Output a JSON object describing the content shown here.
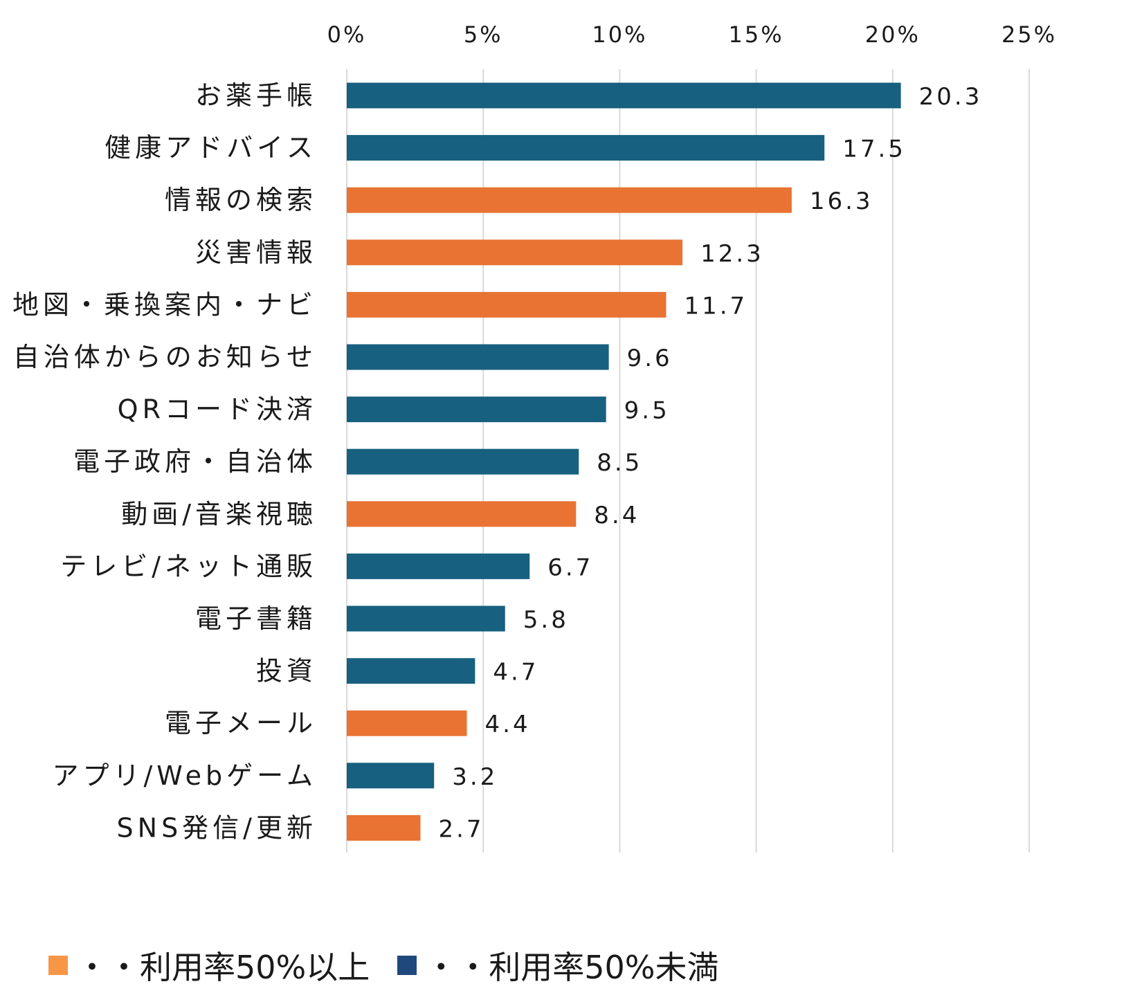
{
  "chart_data": {
    "type": "bar",
    "orientation": "horizontal",
    "x_axis_position": "top",
    "xlim": [
      0,
      25
    ],
    "x_ticks": [
      "0%",
      "5%",
      "10%",
      "15%",
      "20%",
      "25%"
    ],
    "grid": "vertical",
    "categories": [
      "お薬手帳",
      "健康アドバイス",
      "情報の検索",
      "災害情報",
      "地図・乗換案内・ナビ",
      "自治体からのお知らせ",
      "QRコード決済",
      "電子政府・自治体",
      "動画/音楽視聴",
      "テレビ/ネット通販",
      "電子書籍",
      "投資",
      "電子メール",
      "アプリ/Webゲーム",
      "SNS発信/更新"
    ],
    "values": [
      20.3,
      17.5,
      16.3,
      12.3,
      11.7,
      9.6,
      9.5,
      8.5,
      8.4,
      6.7,
      5.8,
      4.7,
      4.4,
      3.2,
      2.7
    ],
    "value_labels": [
      "20.3",
      "17.5",
      "16.3",
      "12.3",
      "11.7",
      "9.6",
      "9.5",
      "8.5",
      "8.4",
      "6.7",
      "5.8",
      "4.7",
      "4.4",
      "3.2",
      "2.7"
    ],
    "groups": [
      "under50",
      "under50",
      "over50",
      "over50",
      "over50",
      "under50",
      "under50",
      "under50",
      "over50",
      "under50",
      "under50",
      "under50",
      "over50",
      "under50",
      "over50"
    ],
    "colors": {
      "over50": "#E87333",
      "under50": "#17607F",
      "grid": "#d9d9d9"
    },
    "legend": {
      "placement": "bottom-left",
      "items": [
        {
          "key": "over50",
          "label": "・・利用率50%以上",
          "color": "#F79646"
        },
        {
          "key": "under50",
          "label": "・・利用率50%未満",
          "color": "#1F497D"
        }
      ]
    }
  }
}
